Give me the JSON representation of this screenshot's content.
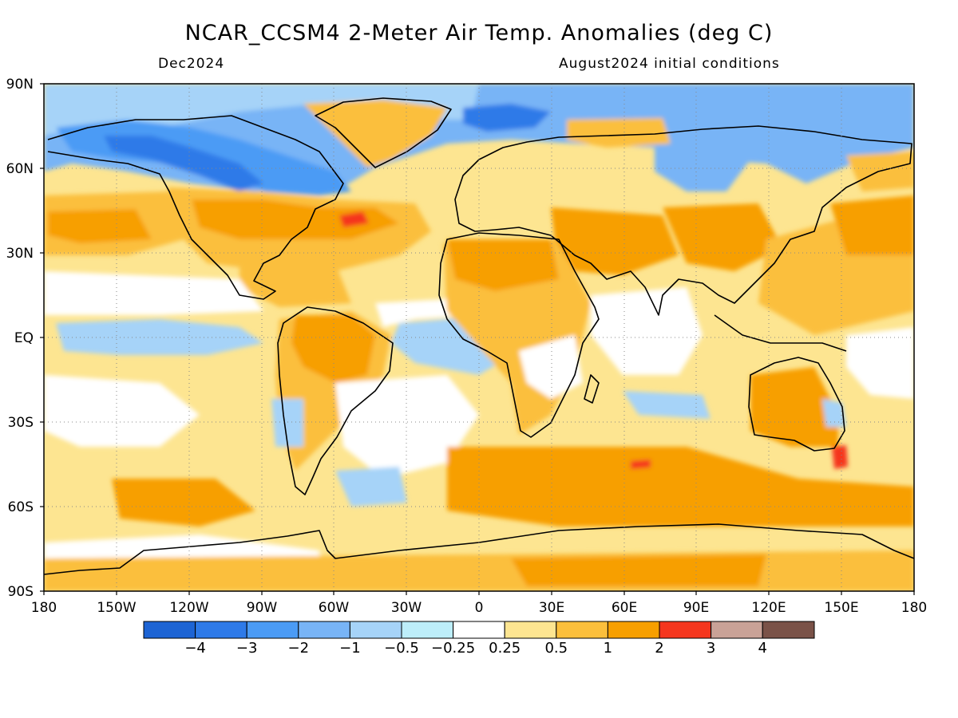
{
  "title": "NCAR_CCSM4 2-Meter Air Temp. Anomalies (deg C)",
  "valid_month": "Dec2024",
  "init_conditions": "August2024 initial conditions",
  "map": {
    "projection": "cylindrical equidistant",
    "lat_ticks": [
      "90N",
      "60N",
      "30N",
      "EQ",
      "30S",
      "60S",
      "90S"
    ],
    "lon_ticks": [
      "180",
      "150W",
      "120W",
      "90W",
      "60W",
      "30W",
      "0",
      "30E",
      "60E",
      "90E",
      "120E",
      "150E",
      "180"
    ],
    "grid": "dotted"
  },
  "colorbar": {
    "colors": [
      "#1d64d4",
      "#2e7ae8",
      "#4b9bf5",
      "#78b4f6",
      "#a6d3f8",
      "#bdeefa",
      "#ffffff",
      "#fde591",
      "#fbbf3c",
      "#f79f00",
      "#f5361e",
      "#c9a297",
      "#7a5248"
    ],
    "labels": [
      "−4",
      "−3",
      "−2",
      "−1",
      "−0.5",
      "−0.25",
      "0.25",
      "0.5",
      "1",
      "2",
      "3",
      "4"
    ]
  },
  "colors": {
    "land_outline": "#000000",
    "cold_strong": "#2e7ae8",
    "cold": "#78b4f6",
    "neutral": "#ffffff",
    "warm": "#fbbf3c",
    "warm_strong": "#f79f00",
    "hot": "#f5361e"
  }
}
